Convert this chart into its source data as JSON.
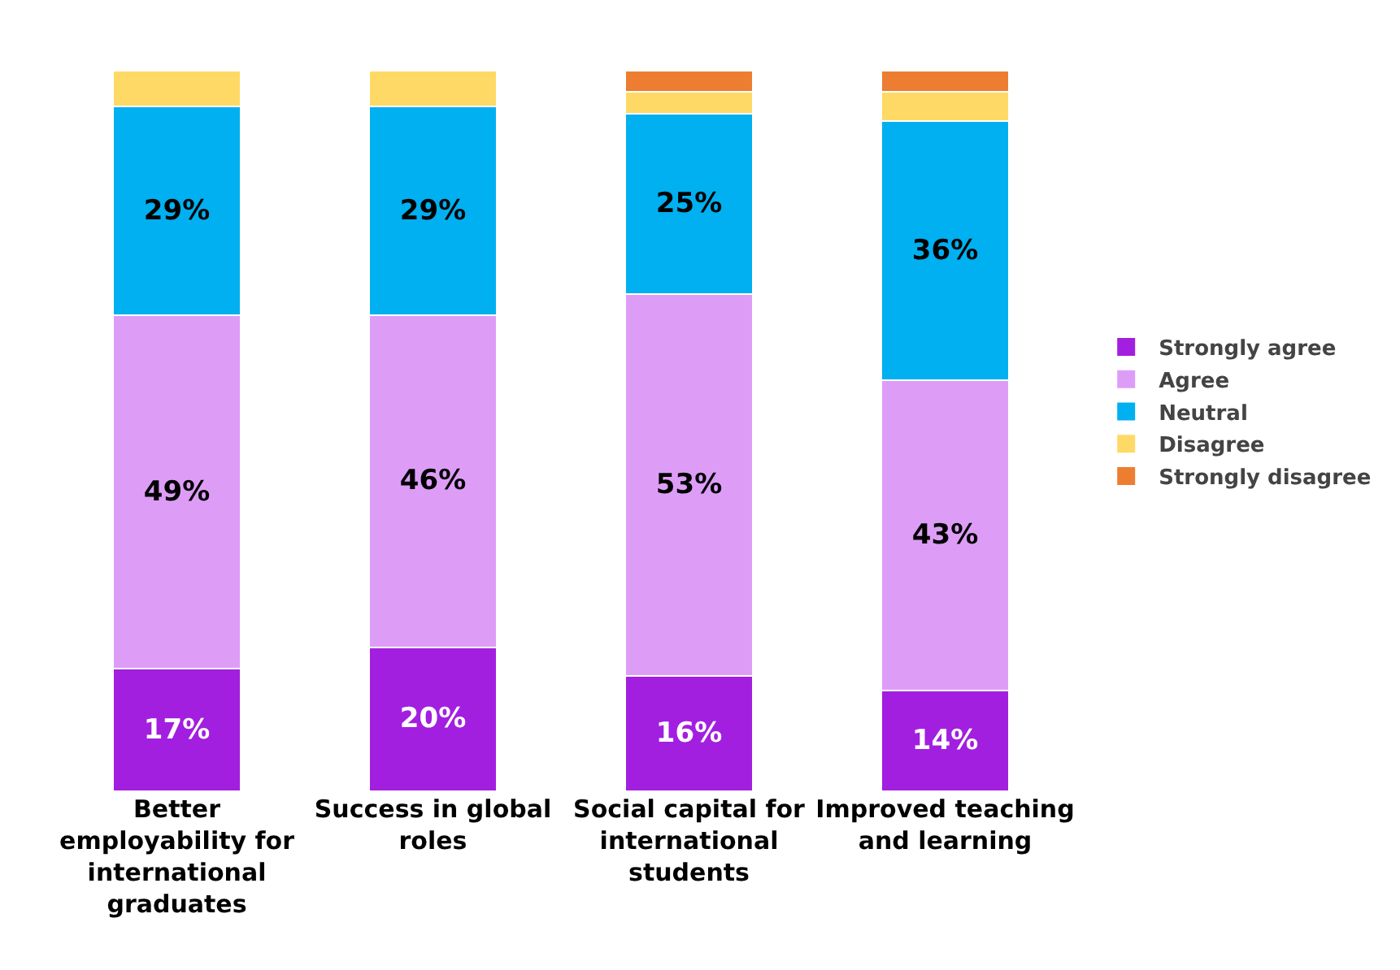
{
  "chart_data": {
    "type": "bar",
    "stacked": true,
    "legend": "right",
    "tick_labels": "x",
    "categories": [
      "Better employability for international graduates",
      "Success in global roles",
      "Social capital for international students",
      "Improved teaching and learning"
    ],
    "series": [
      {
        "name": "Strongly agree",
        "color": "#a21fe0",
        "values": [
          17,
          20,
          16,
          14
        ],
        "value_labels": [
          "17%",
          "20%",
          "16%",
          "14%"
        ]
      },
      {
        "name": "Agree",
        "color": "#dd9df7",
        "values": [
          49,
          46,
          53,
          43
        ],
        "value_labels": [
          "49%",
          "46%",
          "53%",
          "43%"
        ]
      },
      {
        "name": "Neutral",
        "color": "#00b0f0",
        "values": [
          29,
          29,
          25,
          36
        ],
        "value_labels": [
          "29%",
          "29%",
          "25%",
          "36%"
        ]
      },
      {
        "name": "Disagree",
        "color": "#ffd966",
        "values": [
          5,
          5,
          3,
          4
        ],
        "value_labels": [
          null,
          null,
          null,
          null
        ]
      },
      {
        "name": "Strongly disagree",
        "color": "#ed7d31",
        "values": [
          null,
          null,
          3,
          3
        ],
        "value_labels": [
          null,
          null,
          null,
          null
        ]
      }
    ]
  }
}
